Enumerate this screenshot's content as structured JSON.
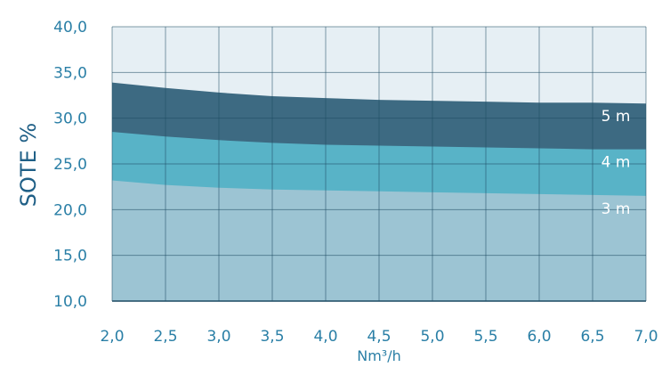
{
  "chart_data": {
    "type": "area",
    "xlabel": "Nm³/h",
    "ylabel": "SOTE %",
    "xlim": [
      2.0,
      7.0
    ],
    "ylim": [
      10.0,
      40.0
    ],
    "x_ticks": [
      "2,0",
      "2,5",
      "3,0",
      "3,5",
      "4,0",
      "4,5",
      "5,0",
      "5,5",
      "6,0",
      "6,5",
      "7,0"
    ],
    "y_ticks": [
      "10,0",
      "15,0",
      "20,0",
      "25,0",
      "30,0",
      "35,0",
      "40,0"
    ],
    "grid": true,
    "x": [
      2.0,
      2.5,
      3.0,
      3.5,
      4.0,
      4.5,
      5.0,
      5.5,
      6.0,
      6.5,
      7.0
    ],
    "series": [
      {
        "name": "5 m",
        "values": [
          33.9,
          33.3,
          32.8,
          32.4,
          32.2,
          32.0,
          31.9,
          31.8,
          31.7,
          31.7,
          31.6
        ],
        "color": "#3d6a82"
      },
      {
        "name": "4 m",
        "values": [
          28.5,
          28.0,
          27.6,
          27.3,
          27.1,
          27.0,
          26.9,
          26.8,
          26.7,
          26.6,
          26.6
        ],
        "color": "#58b3c7"
      },
      {
        "name": "3 m",
        "values": [
          23.2,
          22.7,
          22.4,
          22.2,
          22.1,
          22.0,
          21.9,
          21.8,
          21.7,
          21.6,
          21.5
        ],
        "color": "#9cc4d3"
      }
    ]
  }
}
